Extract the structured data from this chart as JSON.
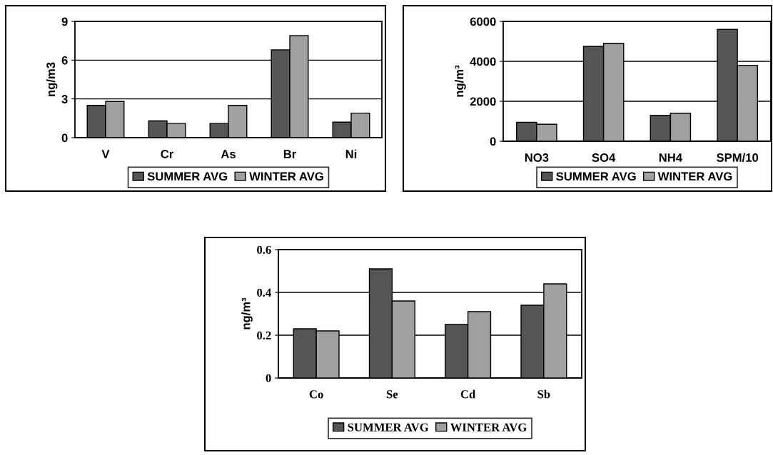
{
  "chart_data": [
    {
      "type": "bar",
      "ylabel": "ng/m3",
      "categories": [
        "V",
        "Cr",
        "As",
        "Br",
        "Ni"
      ],
      "series": [
        {
          "name": "SUMMER AVG",
          "color": "#555555",
          "values": [
            2.5,
            1.3,
            1.1,
            6.8,
            1.2
          ]
        },
        {
          "name": "WINTER AVG",
          "color": "#a0a0a0",
          "values": [
            2.8,
            1.1,
            2.5,
            7.9,
            1.9
          ]
        }
      ],
      "ylim": [
        0,
        9
      ],
      "yticks": [
        0,
        3,
        6,
        9
      ],
      "grid": "y",
      "legend": "bottom"
    },
    {
      "type": "bar",
      "ylabel": "ng/m³",
      "categories": [
        "NO3",
        "SO4",
        "NH4",
        "SPM/10"
      ],
      "series": [
        {
          "name": "SUMMER AVG",
          "color": "#555555",
          "values": [
            950,
            4750,
            1300,
            5600
          ]
        },
        {
          "name": "WINTER AVG",
          "color": "#a0a0a0",
          "values": [
            850,
            4900,
            1400,
            3800
          ]
        }
      ],
      "ylim": [
        0,
        6000
      ],
      "yticks": [
        0,
        2000,
        4000,
        6000
      ],
      "grid": "y",
      "legend": "bottom"
    },
    {
      "type": "bar",
      "ylabel": "ng/m³",
      "categories": [
        "Co",
        "Se",
        "Cd",
        "Sb"
      ],
      "series": [
        {
          "name": "SUMMER AVG",
          "color": "#555555",
          "values": [
            0.23,
            0.51,
            0.25,
            0.34
          ]
        },
        {
          "name": "WINTER AVG",
          "color": "#a0a0a0",
          "values": [
            0.22,
            0.36,
            0.31,
            0.44
          ]
        }
      ],
      "ylim": [
        0,
        0.6
      ],
      "yticks": [
        0,
        0.2,
        0.4,
        0.6
      ],
      "grid": "y",
      "legend": "bottom"
    }
  ]
}
